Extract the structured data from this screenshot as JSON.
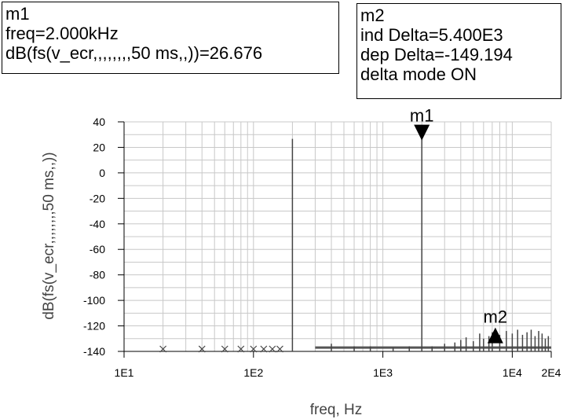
{
  "marker_m1": {
    "name": "m1",
    "freq": "freq=2.000kHz",
    "value": "dB(fs(v_ecr,,,,,,,,50 ms,,))=26.676"
  },
  "marker_m2": {
    "name": "m2",
    "ind_delta": "ind Delta=5.400E3",
    "dep_delta": "dep Delta=-149.194",
    "mode": "delta mode ON"
  },
  "chart_data": {
    "type": "line",
    "xlabel": "freq, Hz",
    "ylabel": "dB(fs(v_ecr,,,,,,,,50 ms,,))",
    "xscale": "log",
    "xlim": [
      10,
      20000
    ],
    "ylim": [
      -140,
      40
    ],
    "yticks": [
      40,
      20,
      0,
      -20,
      -40,
      -60,
      -80,
      -100,
      -120,
      -140
    ],
    "ytick_labels": [
      "40",
      "20",
      "0",
      "-20",
      "-40",
      "-60",
      "-80",
      "-100",
      "-120",
      "-140"
    ],
    "xticks": [
      10,
      100,
      1000,
      10000,
      20000
    ],
    "xtick_labels": [
      "1E1",
      "1E2",
      "1E3",
      "1E4",
      "2E4"
    ],
    "grid": true,
    "spectral_lines": [
      {
        "x": 200,
        "y": 26.676
      },
      {
        "x": 2000,
        "y": 26.676
      },
      {
        "x": 400,
        "y": -134
      },
      {
        "x": 600,
        "y": -136
      },
      {
        "x": 800,
        "y": -136
      },
      {
        "x": 1200,
        "y": -137
      },
      {
        "x": 1600,
        "y": -136
      },
      {
        "x": 2400,
        "y": -136
      },
      {
        "x": 3000,
        "y": -134
      },
      {
        "x": 3600,
        "y": -133
      },
      {
        "x": 4000,
        "y": -131
      },
      {
        "x": 4400,
        "y": -129
      },
      {
        "x": 5000,
        "y": -132
      },
      {
        "x": 5600,
        "y": -126
      },
      {
        "x": 6000,
        "y": -130
      },
      {
        "x": 6600,
        "y": -128
      },
      {
        "x": 7000,
        "y": -125
      },
      {
        "x": 8000,
        "y": -127
      },
      {
        "x": 9000,
        "y": -124
      },
      {
        "x": 10000,
        "y": -126
      },
      {
        "x": 11000,
        "y": -123
      },
      {
        "x": 12000,
        "y": -127
      },
      {
        "x": 13000,
        "y": -125
      },
      {
        "x": 14000,
        "y": -123
      },
      {
        "x": 15000,
        "y": -128
      },
      {
        "x": 16000,
        "y": -124
      },
      {
        "x": 17000,
        "y": -126
      },
      {
        "x": 18000,
        "y": -130
      },
      {
        "x": 19000,
        "y": -128
      }
    ],
    "x_markers_near_floor": [
      20,
      40,
      60,
      80,
      100,
      120,
      140,
      160
    ],
    "markers": [
      {
        "name": "m1",
        "x": 2000,
        "y": 26.676,
        "style": "down-triangle"
      },
      {
        "name": "m2",
        "x": 7400,
        "y": -122.5,
        "style": "up-triangle"
      }
    ]
  }
}
